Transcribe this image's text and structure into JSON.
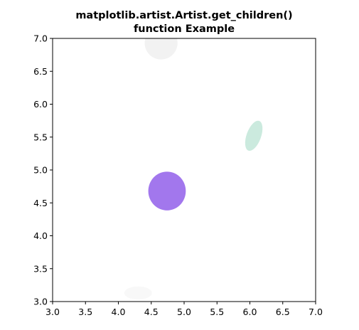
{
  "chart_data": {
    "type": "scatter",
    "title_lines": [
      "matplotlib.artist.Artist.get_children()",
      "function Example"
    ],
    "xlabel": "",
    "ylabel": "",
    "xlim": [
      3.0,
      7.0
    ],
    "ylim": [
      3.0,
      7.0
    ],
    "grid": false,
    "legend": "none",
    "xticks": [
      "3.0",
      "3.5",
      "4.0",
      "4.5",
      "5.0",
      "5.5",
      "6.0",
      "6.5",
      "7.0"
    ],
    "yticks": [
      "3.0",
      "3.5",
      "4.0",
      "4.5",
      "5.0",
      "5.5",
      "6.0",
      "6.5",
      "7.0"
    ],
    "ellipses": [
      {
        "name": "ellipse-gray-top",
        "cx": 4.65,
        "cy": 6.93,
        "width": 0.5,
        "height": 0.5,
        "angle": 35,
        "color": "#e8e8e8",
        "alpha": 0.55
      },
      {
        "name": "ellipse-green",
        "cx": 6.06,
        "cy": 5.52,
        "width": 0.22,
        "height": 0.48,
        "angle": -20,
        "color": "#a8dcc8",
        "alpha": 0.6
      },
      {
        "name": "ellipse-purple",
        "cx": 4.74,
        "cy": 4.68,
        "width": 0.57,
        "height": 0.59,
        "angle": 0,
        "color": "#8b55e8",
        "alpha": 0.8
      },
      {
        "name": "ellipse-light-bottom",
        "cx": 4.3,
        "cy": 3.13,
        "width": 0.42,
        "height": 0.2,
        "angle": 0,
        "color": "#e8e8e8",
        "alpha": 0.3
      }
    ]
  }
}
